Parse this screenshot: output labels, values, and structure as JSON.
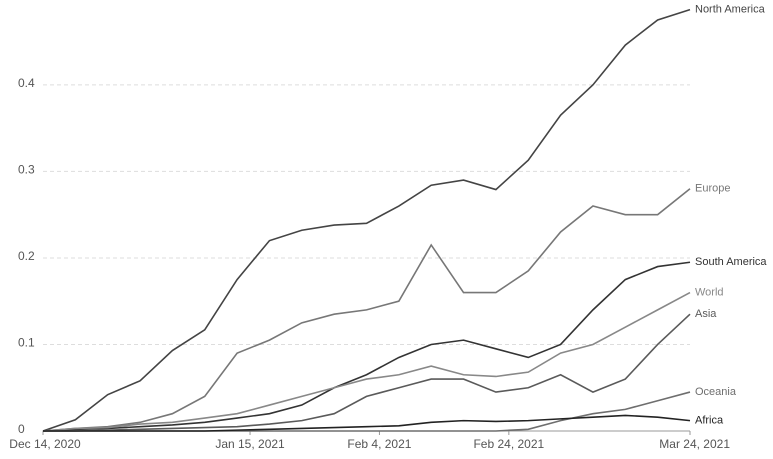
{
  "chart_data": {
    "type": "line",
    "x": [
      "2020-12-14",
      "2020-12-19",
      "2020-12-24",
      "2020-12-29",
      "2021-01-03",
      "2021-01-08",
      "2021-01-13",
      "2021-01-18",
      "2021-01-23",
      "2021-01-28",
      "2021-02-02",
      "2021-02-07",
      "2021-02-12",
      "2021-02-17",
      "2021-02-22",
      "2021-02-27",
      "2021-03-04",
      "2021-03-09",
      "2021-03-14",
      "2021-03-19",
      "2021-03-24"
    ],
    "xlim": [
      "2020-12-14",
      "2021-03-24"
    ],
    "xticks": [
      {
        "value": "2020-12-14",
        "label": "Dec 14, 2020"
      },
      {
        "value": "2021-01-15",
        "label": "Jan 15, 2021"
      },
      {
        "value": "2021-02-04",
        "label": "Feb 4, 2021"
      },
      {
        "value": "2021-02-24",
        "label": "Feb 24, 2021"
      },
      {
        "value": "2021-03-24",
        "label": "Mar 24, 2021"
      }
    ],
    "ylim": [
      0,
      0.49
    ],
    "yticks": [
      0,
      0.1,
      0.2,
      0.3,
      0.4
    ],
    "grid": true,
    "series": [
      {
        "name": "North America",
        "color": "#444444",
        "values": [
          0,
          0.013,
          0.042,
          0.058,
          0.093,
          0.117,
          0.175,
          0.22,
          0.232,
          0.238,
          0.24,
          0.26,
          0.284,
          0.29,
          0.279,
          0.313,
          0.365,
          0.4,
          0.446,
          0.475,
          0.487
        ]
      },
      {
        "name": "Europe",
        "color": "#777777",
        "values": [
          0,
          0.003,
          0.005,
          0.01,
          0.02,
          0.04,
          0.09,
          0.105,
          0.125,
          0.135,
          0.14,
          0.15,
          0.215,
          0.16,
          0.16,
          0.185,
          0.23,
          0.26,
          0.25,
          0.25,
          0.28
        ]
      },
      {
        "name": "South America",
        "color": "#333333",
        "values": [
          0,
          0.002,
          0.003,
          0.005,
          0.007,
          0.01,
          0.015,
          0.02,
          0.03,
          0.05,
          0.065,
          0.085,
          0.1,
          0.105,
          0.095,
          0.085,
          0.1,
          0.14,
          0.175,
          0.19,
          0.195
        ]
      },
      {
        "name": "World",
        "color": "#888888",
        "values": [
          0,
          0.003,
          0.004,
          0.008,
          0.01,
          0.015,
          0.02,
          0.03,
          0.04,
          0.05,
          0.06,
          0.065,
          0.075,
          0.065,
          0.063,
          0.068,
          0.09,
          0.1,
          0.12,
          0.14,
          0.16
        ]
      },
      {
        "name": "Asia",
        "color": "#5a5a5a",
        "values": [
          0,
          0,
          0.001,
          0.002,
          0.003,
          0.004,
          0.005,
          0.008,
          0.012,
          0.02,
          0.04,
          0.05,
          0.06,
          0.06,
          0.045,
          0.05,
          0.065,
          0.045,
          0.06,
          0.1,
          0.135
        ]
      },
      {
        "name": "Oceania",
        "color": "#6e6e6e",
        "values": [
          0,
          0,
          0,
          0,
          0,
          0,
          0,
          0,
          0,
          0,
          0,
          0,
          0,
          0,
          0,
          0.002,
          0.012,
          0.02,
          0.025,
          0.035,
          0.045
        ]
      },
      {
        "name": "Africa",
        "color": "#222222",
        "values": [
          0,
          0,
          0,
          0,
          0,
          0,
          0.001,
          0.002,
          0.003,
          0.004,
          0.005,
          0.006,
          0.01,
          0.012,
          0.011,
          0.012,
          0.014,
          0.016,
          0.018,
          0.016,
          0.012
        ]
      }
    ]
  }
}
